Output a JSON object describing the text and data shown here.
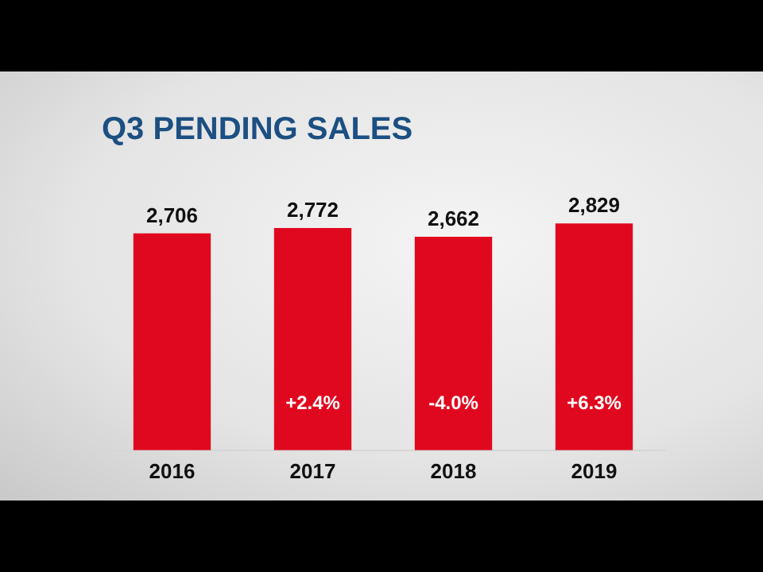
{
  "chart_data": {
    "type": "bar",
    "title": "Q3 PENDING SALES",
    "categories": [
      "2016",
      "2017",
      "2018",
      "2019"
    ],
    "values": [
      2706,
      2772,
      2662,
      2829
    ],
    "color": "#e0081f",
    "value_labels": [
      "2,706",
      "2,772",
      "2,662",
      "2,829"
    ],
    "grid": false,
    "legend": false,
    "tick_labels": "x",
    "annotations": [
      "+2.4%",
      "-4.0%",
      "+6.3%"
    ]
  }
}
